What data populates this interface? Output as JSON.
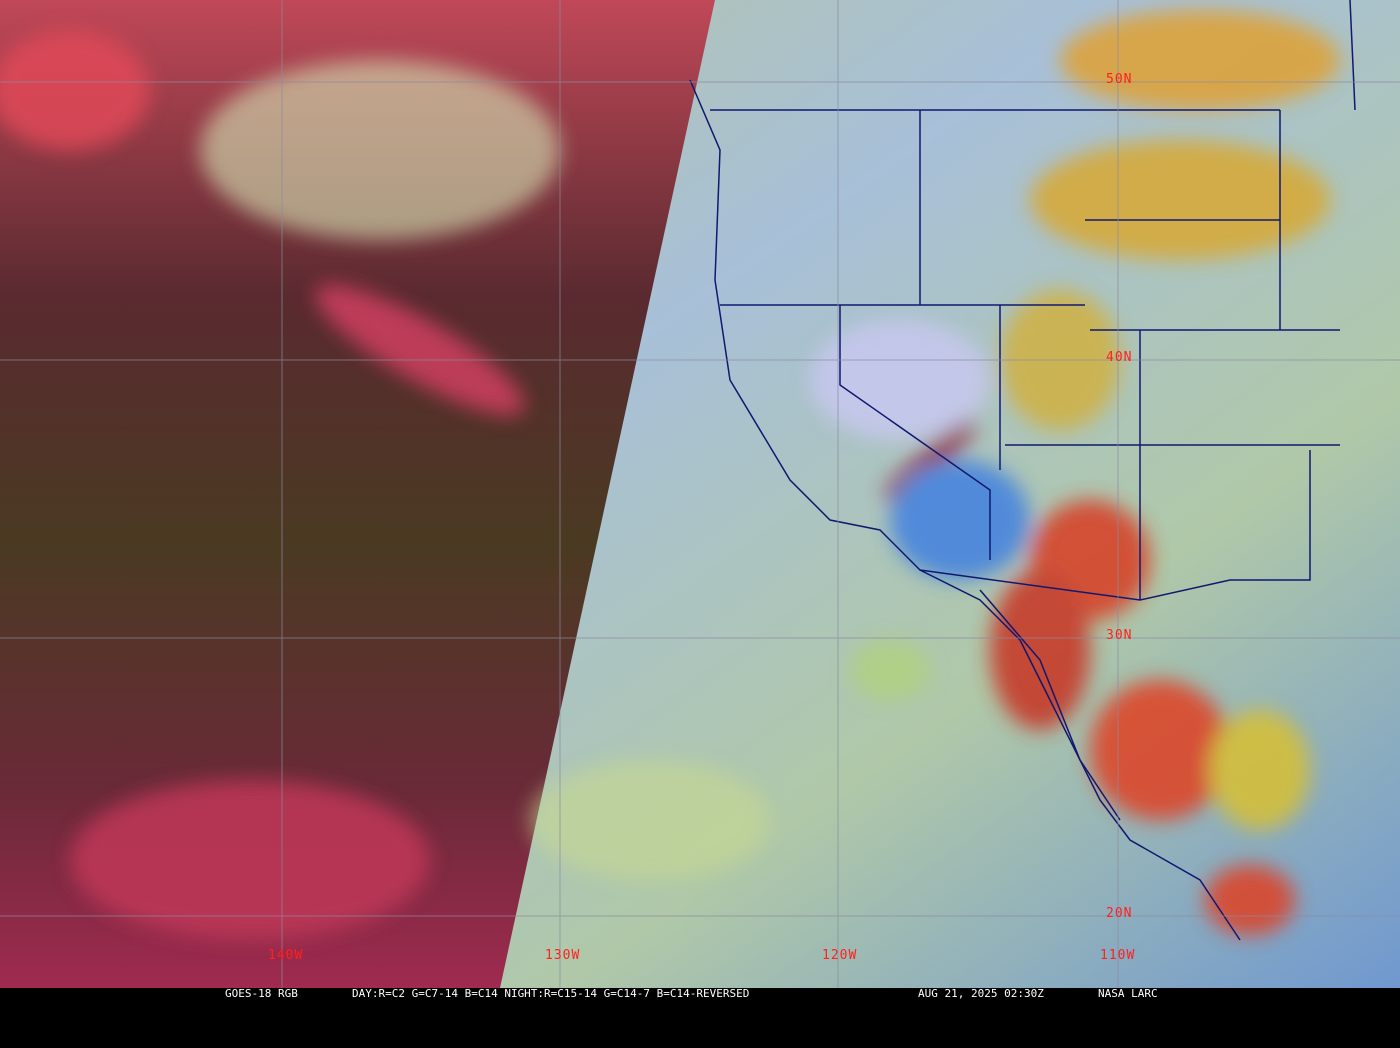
{
  "map": {
    "satellite_product": "GOES-18 RGB",
    "recipe": "DAY:R=C2 G=C7-14 B=C14 NIGHT:R=C15-14 G=C14-7 B=C14-REVERSED",
    "datetime": "AUG 21, 2025 02:30Z",
    "credit": "NASA LARC",
    "longitude_labels": [
      "140W",
      "130W",
      "120W",
      "110W"
    ],
    "latitude_labels": [
      "50N",
      "40N",
      "30N",
      "20N"
    ],
    "colors": {
      "grid": "#8a8aa0",
      "borders": "#101870",
      "labels": "#ff2020",
      "night_side": "#4a2a2a",
      "day_ocean": "#a8c8d8",
      "convection": "#e04020"
    }
  }
}
